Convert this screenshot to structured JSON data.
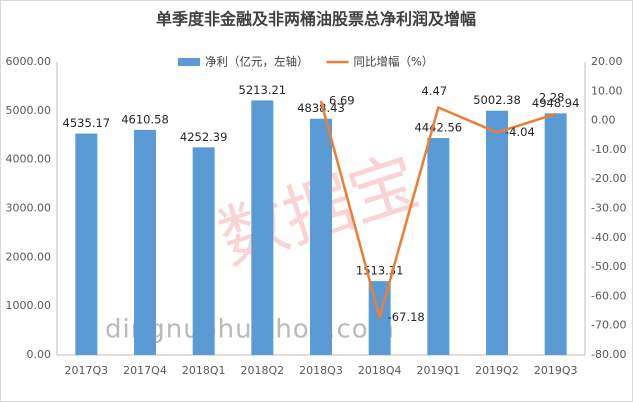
{
  "chart_data": {
    "type": "bar",
    "title": "单季度非金融及非两桶油股票总净利润及增幅",
    "categories": [
      "2017Q3",
      "2017Q4",
      "2018Q1",
      "2018Q2",
      "2018Q3",
      "2018Q4",
      "2019Q1",
      "2019Q2",
      "2019Q3"
    ],
    "series": [
      {
        "name": "净利（亿元，左轴）",
        "type": "bar",
        "color": "#5b9bd5",
        "values": [
          4535.17,
          4610.58,
          4252.39,
          5213.21,
          4838.43,
          1513.31,
          4442.56,
          5002.38,
          4948.94
        ]
      },
      {
        "name": "同比增幅（%）",
        "type": "line",
        "color": "#ed7d31",
        "axis": "y2",
        "values": [
          null,
          null,
          null,
          null,
          6.69,
          -67.18,
          4.47,
          -4.04,
          2.28
        ]
      }
    ],
    "ylim": [
      0,
      6000
    ],
    "yticks": [
      {
        "value": 0,
        "label": "0.00"
      },
      {
        "value": 1000,
        "label": "1000.00"
      },
      {
        "value": 2000,
        "label": "2000.00"
      },
      {
        "value": 3000,
        "label": "3000.00"
      },
      {
        "value": 4000,
        "label": "4000.00"
      },
      {
        "value": 5000,
        "label": "5000.00"
      },
      {
        "value": 6000,
        "label": "6000.00"
      }
    ],
    "y2lim": [
      -80,
      20
    ],
    "y2ticks": [
      {
        "value": -80,
        "label": "-80.00"
      },
      {
        "value": -70,
        "label": "-70.00"
      },
      {
        "value": -60,
        "label": "-60.00"
      },
      {
        "value": -50,
        "label": "-50.00"
      },
      {
        "value": -40,
        "label": "-40.00"
      },
      {
        "value": -30,
        "label": "-30.00"
      },
      {
        "value": -20,
        "label": "-20.00"
      },
      {
        "value": -10,
        "label": "-10.00"
      },
      {
        "value": 0,
        "label": "0.00"
      },
      {
        "value": 10,
        "label": "10.00"
      },
      {
        "value": 20,
        "label": "20.00"
      }
    ],
    "grid": false,
    "legend": "top",
    "watermarks": [
      "数据宝",
      "dingnuohuishou.com"
    ]
  }
}
